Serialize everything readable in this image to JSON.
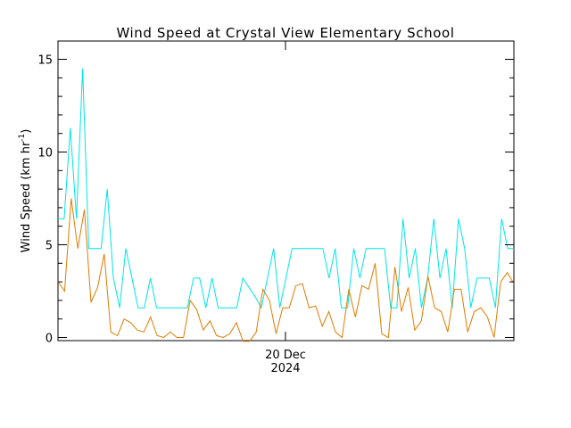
{
  "chart_data": {
    "type": "line",
    "title": "Wind Speed at Crystal View Elementary School",
    "ylabel": "Wind Speed (km hr",
    "ylabel_sup": "-1",
    "ylabel_end": ")",
    "xlabel": "",
    "x_tick_label_line1": "20 Dec",
    "x_tick_label_line2": "2024",
    "ylim": [
      0,
      16
    ],
    "y_ticks": [
      0,
      5,
      10,
      15
    ],
    "y_tick_labels": [
      "0",
      "5",
      "10",
      "15"
    ],
    "grid": false,
    "series": [
      {
        "color": "#00e5e5",
        "values": [
          6.4,
          6.4,
          11.3,
          6.4,
          14.5,
          4.8,
          4.8,
          4.8,
          8.0,
          3.2,
          1.6,
          4.8,
          3.2,
          1.6,
          1.6,
          3.2,
          1.6,
          1.6,
          1.6,
          1.6,
          1.6,
          1.6,
          3.2,
          3.2,
          1.6,
          3.2,
          1.6,
          1.6,
          1.6,
          1.6,
          3.2,
          2.7,
          2.2,
          1.6,
          3.2,
          4.8,
          1.6,
          3.2,
          4.8,
          4.8,
          4.8,
          4.8,
          4.8,
          4.8,
          3.2,
          4.8,
          1.6,
          1.6,
          4.8,
          3.2,
          4.8,
          4.8,
          4.8,
          4.8,
          1.6,
          1.6,
          6.4,
          3.2,
          4.8,
          1.6,
          3.2,
          6.4,
          3.2,
          4.8,
          1.6,
          6.4,
          4.8,
          1.6,
          3.2,
          3.2,
          3.2,
          1.6,
          6.4,
          4.8,
          4.8
        ]
      },
      {
        "color": "#e07b00",
        "values": [
          3.0,
          2.5,
          7.5,
          4.8,
          6.9,
          1.9,
          2.7,
          4.5,
          0.3,
          0.1,
          1.0,
          0.8,
          0.4,
          0.3,
          1.1,
          0.1,
          0.0,
          0.3,
          0.0,
          0.0,
          2.0,
          1.5,
          0.4,
          0.9,
          0.1,
          0.0,
          0.2,
          0.8,
          -0.2,
          -0.2,
          0.3,
          2.6,
          2.0,
          0.2,
          1.6,
          1.6,
          2.8,
          2.9,
          1.6,
          1.7,
          0.6,
          1.4,
          0.3,
          0.0,
          2.6,
          1.1,
          2.8,
          2.6,
          4.0,
          0.2,
          0.0,
          3.8,
          1.4,
          2.7,
          0.4,
          0.9,
          3.3,
          1.6,
          1.4,
          0.3,
          2.6,
          2.6,
          0.3,
          1.4,
          1.6,
          1.1,
          0.0,
          3.0,
          3.5,
          2.9
        ]
      }
    ]
  }
}
